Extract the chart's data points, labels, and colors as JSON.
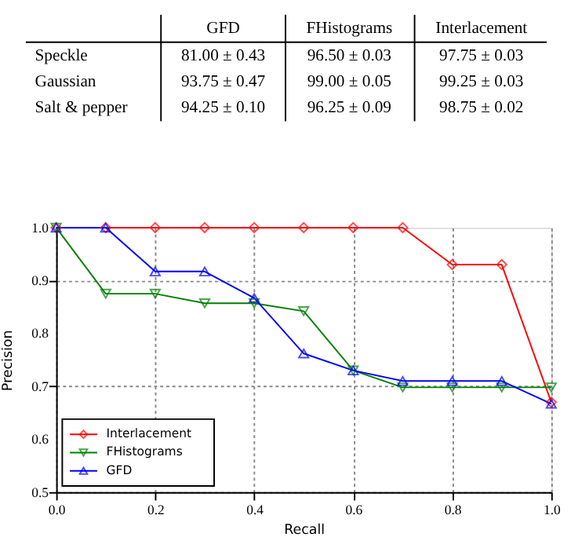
{
  "chart_data": {
    "type": "line",
    "xlabel": "Recall",
    "ylabel": "Precision",
    "x": [
      0.0,
      0.1,
      0.2,
      0.3,
      0.4,
      0.5,
      0.6,
      0.7,
      0.8,
      0.9,
      1.0
    ],
    "series": [
      {
        "name": "Interlacement",
        "color": "#ff0000",
        "marker": "diamond",
        "values": [
          1.0,
          1.0,
          1.0,
          1.0,
          1.0,
          1.0,
          1.0,
          1.0,
          0.93,
          0.93,
          0.67
        ]
      },
      {
        "name": "FHistograms",
        "color": "#008000",
        "marker": "triangle-down",
        "values": [
          1.0,
          0.875,
          0.875,
          0.857,
          0.857,
          0.842,
          0.73,
          0.698,
          0.698,
          0.698,
          0.698
        ]
      },
      {
        "name": "GFD",
        "color": "#0000ff",
        "marker": "triangle-up",
        "values": [
          1.0,
          1.0,
          0.917,
          0.917,
          0.867,
          0.762,
          0.73,
          0.71,
          0.71,
          0.71,
          0.667
        ]
      }
    ],
    "xlim": [
      0.0,
      1.0
    ],
    "ylim": [
      0.5,
      1.0
    ],
    "xticks": [
      {
        "value": 0,
        "label": "0.0"
      },
      0.2,
      0.4,
      0.6,
      0.8,
      {
        "value": 1,
        "label": "1.0"
      }
    ],
    "yticks": [
      0.5,
      0.6,
      0.7,
      0.8,
      0.9,
      {
        "value": 1,
        "label": "1.0"
      }
    ],
    "grid": true,
    "legend": "bottom left",
    "line_style": "solid",
    "annotations": [
      "GFD",
      "FHistograms",
      "Interlacement",
      "Speckle",
      "81.00 ± 0.43",
      "96.50 ± 0.03",
      "97.75 ± 0.03",
      "Gaussian",
      "93.75 ± 0.47",
      "99.00 ± 0.05",
      "99.25 ± 0.03",
      "Salt & pepper",
      "94.25 ± 0.10",
      "96.25 ± 0.09",
      "98.75 ± 0.02"
    ]
  }
}
